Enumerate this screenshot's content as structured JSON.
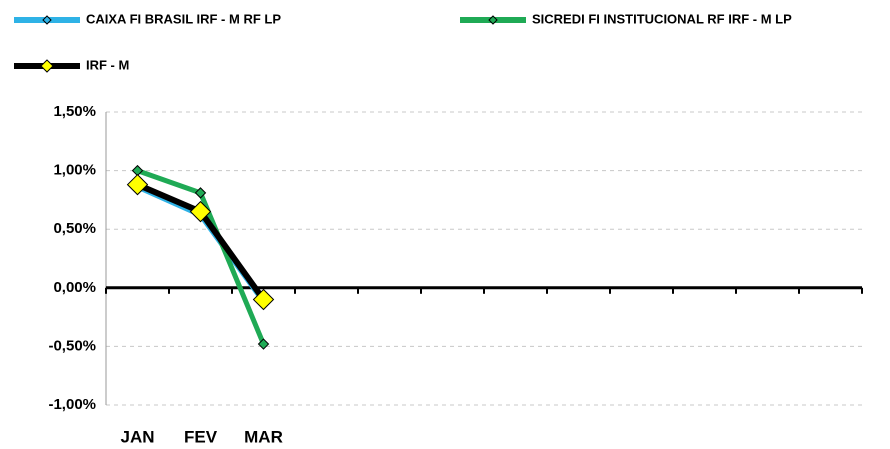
{
  "chart_data": {
    "type": "line",
    "categories": [
      "JAN",
      "FEV",
      "MAR",
      null,
      null,
      null,
      null,
      null,
      null,
      null,
      null,
      null
    ],
    "series": [
      {
        "name": "CAIXA FI BRASIL IRF - M RF LP",
        "color": "#2eb2e6",
        "marker_color": "#2eb2e6",
        "marker_size": 5,
        "line_width": 5,
        "values": [
          0.86,
          0.62,
          -0.12,
          null,
          null,
          null,
          null,
          null,
          null,
          null,
          null,
          null
        ]
      },
      {
        "name": "SICREDI FI INSTITUCIONAL RF IRF - M LP",
        "color": "#1faa55",
        "marker_color": "#1faa55",
        "marker_size": 5,
        "line_width": 5,
        "values": [
          1.0,
          0.81,
          -0.48,
          null,
          null,
          null,
          null,
          null,
          null,
          null,
          null,
          null
        ]
      },
      {
        "name": "IRF - M",
        "color": "#000000",
        "marker_color": "#ffff00",
        "marker_size": 10,
        "line_width": 6,
        "values": [
          0.88,
          0.65,
          -0.1,
          null,
          null,
          null,
          null,
          null,
          null,
          null,
          null,
          null
        ]
      }
    ],
    "ylim": [
      -1.0,
      1.5
    ],
    "yticks": [
      {
        "value": -1.0,
        "label": "-1,00%"
      },
      {
        "value": -0.5,
        "label": "-0,50%"
      },
      {
        "value": 0,
        "label": "0,00%"
      },
      {
        "value": 0.5,
        "label": "0,50%"
      },
      {
        "value": 1.0,
        "label": "1,00%"
      },
      {
        "value": 1.5,
        "label": "1,50%"
      }
    ],
    "grid": true,
    "legend": "top"
  }
}
